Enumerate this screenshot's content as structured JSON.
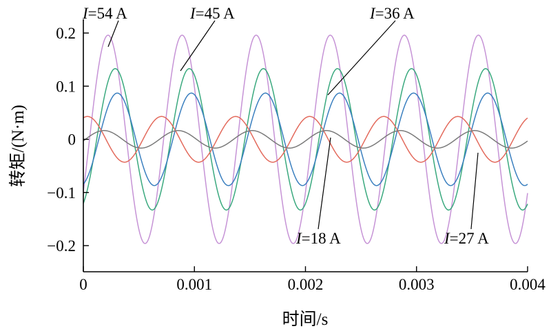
{
  "chart_data": {
    "type": "line",
    "xlabel": "时间/s",
    "ylabel": "转矩/(N·m)",
    "xlim": [
      0,
      0.004
    ],
    "ylim": [
      -0.22,
      0.22
    ],
    "x_ticks": [
      0,
      0.001,
      0.002,
      0.003,
      0.004
    ],
    "x_tick_labels": [
      "0",
      "0.001",
      "0.002",
      "0.003",
      "0.004"
    ],
    "y_ticks": [
      0.2,
      0.1,
      0,
      -0.1,
      -0.2
    ],
    "y_tick_labels": [
      "0.2",
      "0.1",
      "0",
      "−0.1",
      "−0.2"
    ],
    "grid": false,
    "period_s": 0.000667,
    "series": [
      {
        "name": "I=54 A",
        "current": "54 A",
        "color": "#c693d6",
        "amplitude": 0.196,
        "offset": 0.0,
        "phase_deg": -30
      },
      {
        "name": "I=45 A",
        "current": "45 A",
        "color": "#3aa97e",
        "amplitude": 0.133,
        "offset": 0.0,
        "phase_deg": -65
      },
      {
        "name": "I=36 A",
        "current": "36 A",
        "color": "#3a7fbf",
        "amplitude": 0.087,
        "offset": 0.0,
        "phase_deg": -75
      },
      {
        "name": "I=27 A",
        "current": "27 A",
        "color": "#e36a5c",
        "amplitude": 0.043,
        "offset": 0.0,
        "phase_deg": 70
      },
      {
        "name": "I=18 A",
        "current": "18 A",
        "color": "#7a7a7a",
        "amplitude": 0.0165,
        "offset": 0.0,
        "phase_deg": -10
      }
    ],
    "annotations": [
      {
        "series": "I=54 A",
        "label_var": "I",
        "label_rest": "=54 A"
      },
      {
        "series": "I=45 A",
        "label_var": "I",
        "label_rest": "=45 A"
      },
      {
        "series": "I=36 A",
        "label_var": "I",
        "label_rest": "=36 A"
      },
      {
        "series": "I=18 A",
        "label_var": "I",
        "label_rest": "=18 A"
      },
      {
        "series": "I=27 A",
        "label_var": "I",
        "label_rest": "=27 A"
      }
    ]
  }
}
